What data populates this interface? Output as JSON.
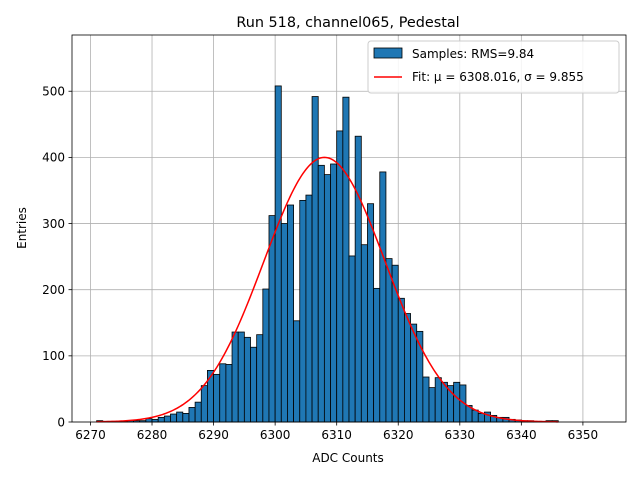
{
  "chart_data": {
    "type": "bar",
    "title": "Run 518, channel065, Pedestal",
    "xlabel": "ADC Counts",
    "ylabel": "Entries",
    "xlim": [
      6267,
      6357
    ],
    "ylim": [
      0,
      585
    ],
    "xticks": [
      6270,
      6280,
      6290,
      6300,
      6310,
      6320,
      6330,
      6340,
      6350
    ],
    "yticks": [
      0,
      100,
      200,
      300,
      400,
      500
    ],
    "grid": true,
    "legend_position": "top-right",
    "bin_width": 1,
    "bins": [
      [
        6271,
        2
      ],
      [
        6272,
        1
      ],
      [
        6273,
        1
      ],
      [
        6274,
        1
      ],
      [
        6275,
        1
      ],
      [
        6276,
        2
      ],
      [
        6277,
        2
      ],
      [
        6278,
        2
      ],
      [
        6279,
        5
      ],
      [
        6280,
        4
      ],
      [
        6281,
        7
      ],
      [
        6282,
        9
      ],
      [
        6283,
        12
      ],
      [
        6284,
        15
      ],
      [
        6285,
        13
      ],
      [
        6286,
        22
      ],
      [
        6287,
        30
      ],
      [
        6288,
        55
      ],
      [
        6289,
        78
      ],
      [
        6290,
        72
      ],
      [
        6291,
        88
      ],
      [
        6292,
        87
      ],
      [
        6293,
        136
      ],
      [
        6294,
        136
      ],
      [
        6295,
        128
      ],
      [
        6296,
        113
      ],
      [
        6297,
        132
      ],
      [
        6298,
        201
      ],
      [
        6299,
        312
      ],
      [
        6300,
        508
      ],
      [
        6301,
        300
      ],
      [
        6302,
        328
      ],
      [
        6303,
        153
      ],
      [
        6304,
        335
      ],
      [
        6305,
        343
      ],
      [
        6306,
        492
      ],
      [
        6307,
        388
      ],
      [
        6308,
        374
      ],
      [
        6309,
        390
      ],
      [
        6310,
        440
      ],
      [
        6311,
        491
      ],
      [
        6312,
        251
      ],
      [
        6313,
        432
      ],
      [
        6314,
        268
      ],
      [
        6315,
        330
      ],
      [
        6316,
        202
      ],
      [
        6317,
        378
      ],
      [
        6318,
        247
      ],
      [
        6319,
        237
      ],
      [
        6320,
        187
      ],
      [
        6321,
        164
      ],
      [
        6322,
        148
      ],
      [
        6323,
        137
      ],
      [
        6324,
        68
      ],
      [
        6325,
        52
      ],
      [
        6326,
        67
      ],
      [
        6327,
        60
      ],
      [
        6328,
        55
      ],
      [
        6329,
        60
      ],
      [
        6330,
        56
      ],
      [
        6331,
        25
      ],
      [
        6332,
        18
      ],
      [
        6333,
        13
      ],
      [
        6334,
        15
      ],
      [
        6335,
        10
      ],
      [
        6336,
        7
      ],
      [
        6337,
        7
      ],
      [
        6338,
        4
      ],
      [
        6339,
        3
      ],
      [
        6340,
        2
      ],
      [
        6341,
        2
      ],
      [
        6342,
        1
      ],
      [
        6343,
        1
      ],
      [
        6344,
        2
      ],
      [
        6345,
        2
      ]
    ],
    "fit": {
      "mu": 6308.016,
      "sigma": 9.855,
      "amplitude": 400
    },
    "series": [
      {
        "name": "Samples: RMS=9.84",
        "color": "#1f77b4",
        "kind": "histogram"
      },
      {
        "name": "Fit: μ = 6308.016, σ = 9.855",
        "color": "#ff0000",
        "kind": "line"
      }
    ]
  }
}
